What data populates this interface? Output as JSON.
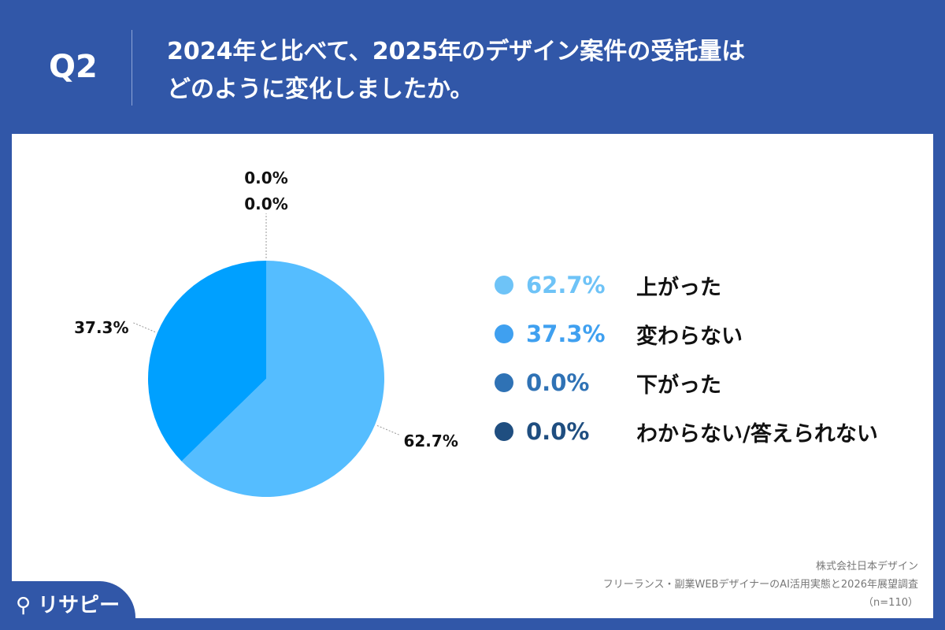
{
  "header": {
    "question_number": "Q2",
    "title_line1": "2024年と比べて、2025年のデザイン案件の受託量は",
    "title_line2": "どのように変化しましたか。"
  },
  "chart_data": {
    "type": "pie",
    "title": "2024年と比べて、2025年のデザイン案件の受託量はどのように変化しましたか。",
    "categories": [
      "上がった",
      "変わらない",
      "下がった",
      "わからない/答えられない"
    ],
    "values": [
      62.7,
      37.3,
      0.0,
      0.0
    ],
    "value_labels": [
      "62.7%",
      "37.3%",
      "0.0%",
      "0.0%"
    ],
    "slice_colors": [
      "#55bdff",
      "#00a0ff",
      "#2f72b5",
      "#1f4e80"
    ],
    "legend_colors": [
      "#6ec3f7",
      "#3fa0f0",
      "#2f72b5",
      "#1f4e80"
    ],
    "legend_placement": "right"
  },
  "source": {
    "company": "株式会社日本デザイン",
    "survey": "フリーランス・副業WEBデザイナーのAI活用実態と2026年展望調査",
    "sample": "（n=110）"
  },
  "logo": {
    "text": "リサピー"
  },
  "colors": {
    "background": "#3157a8",
    "panel": "#ffffff"
  }
}
